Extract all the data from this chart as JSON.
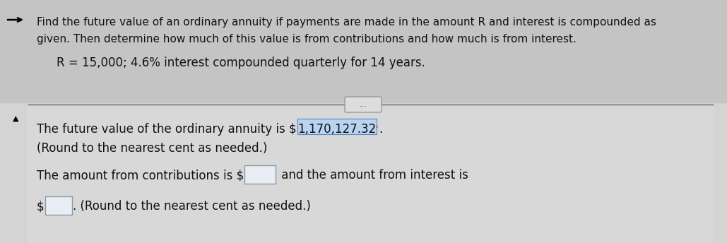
{
  "bg_color": "#d4d4d4",
  "top_bg_color": "#c4c4c4",
  "header_text_line1": "Find the future value of an ordinary annuity if payments are made in the amount R and interest is compounded as",
  "header_text_line2": "given. Then determine how much of this value is from contributions and how much is from interest.",
  "param_text": "R = 15,000; 4.6% interest compounded quarterly for 14 years.",
  "dots_label": "...",
  "body_line1_pre": "The future value of the ordinary annuity is $ ",
  "body_line1_num": "1,170,127.32",
  "body_line1_post": ".",
  "body_line2": "(Round to the nearest cent as needed.)",
  "body_line3a": "The amount from contributions is $",
  "body_line3b": " and the amount from interest is",
  "body_line4a": "$",
  "body_line4b": ". (Round to the nearest cent as needed.)",
  "font_size_header": 11.0,
  "font_size_param": 12.0,
  "font_size_body": 12.0,
  "text_color": "#111111",
  "highlight_box_facecolor": "#b8d4f0",
  "highlight_box_edgecolor": "#5588bb",
  "input_box_facecolor": "#e8eef4",
  "input_box_edgecolor": "#8899aa"
}
